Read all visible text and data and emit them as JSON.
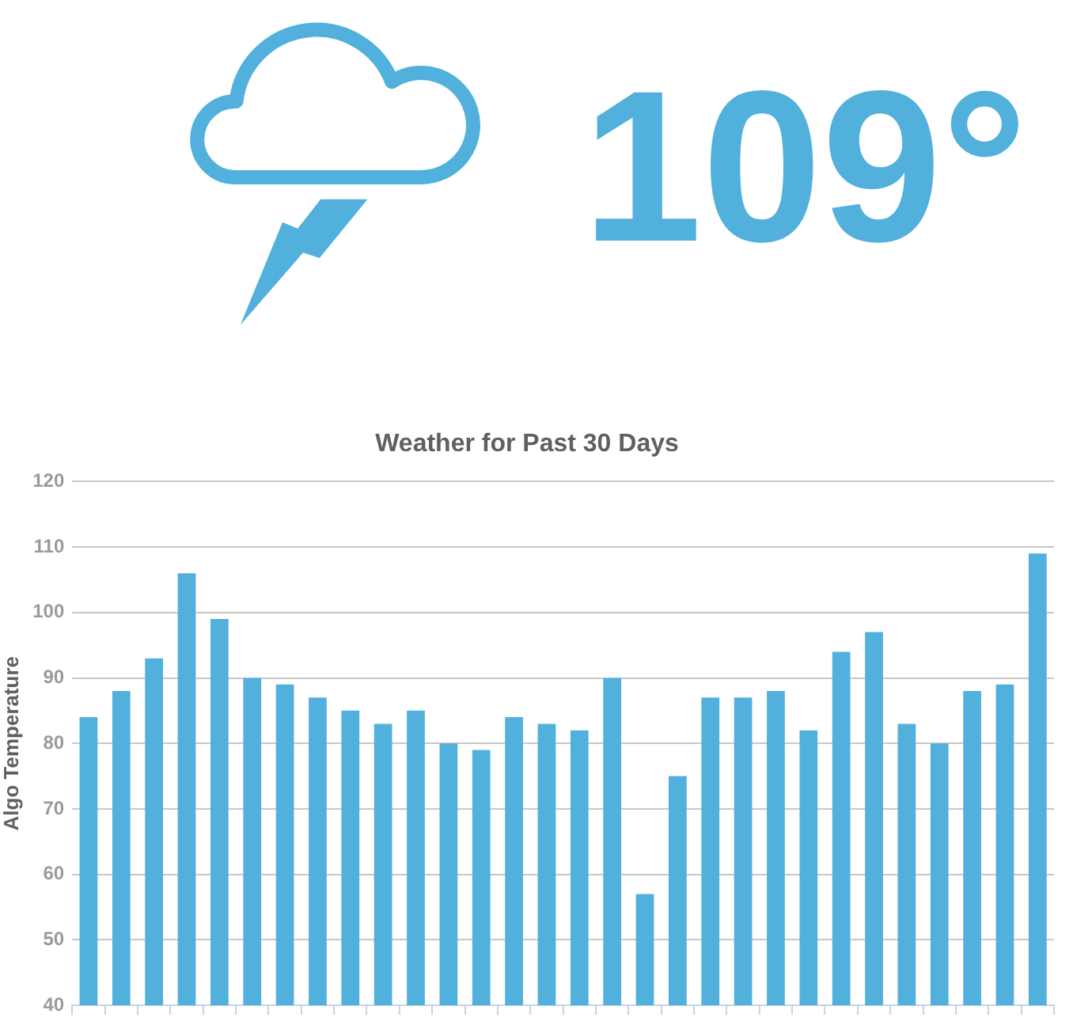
{
  "chart_data": {
    "type": "bar",
    "title": "Weather for Past 30 Days",
    "ylabel": "Algo Temperature",
    "annotations": [
      "109°"
    ],
    "categories": [
      null,
      null,
      null,
      null,
      null,
      null,
      null,
      null,
      null,
      null,
      null,
      null,
      null,
      null,
      null,
      null,
      null,
      null,
      null,
      null,
      null,
      null,
      null,
      null,
      null,
      null,
      null,
      null,
      null,
      null
    ],
    "values": [
      84,
      88,
      93,
      106,
      99,
      90,
      89,
      87,
      85,
      83,
      85,
      80,
      79,
      84,
      83,
      82,
      90,
      57,
      75,
      87,
      87,
      88,
      82,
      94,
      97,
      83,
      80,
      88,
      89,
      109
    ],
    "color": "#52b1dc",
    "ylim": [
      40,
      120
    ],
    "yticks": [
      40,
      50,
      60,
      70,
      80,
      90,
      100,
      110,
      120
    ],
    "grid": "y"
  }
}
